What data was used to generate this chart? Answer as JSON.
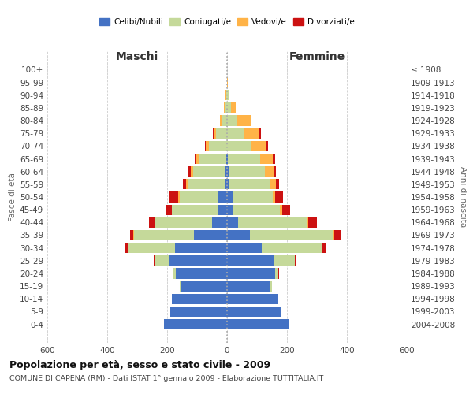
{
  "age_groups": [
    "100+",
    "95-99",
    "90-94",
    "85-89",
    "80-84",
    "75-79",
    "70-74",
    "65-69",
    "60-64",
    "55-59",
    "50-54",
    "45-49",
    "40-44",
    "35-39",
    "30-34",
    "25-29",
    "20-24",
    "15-19",
    "10-14",
    "5-9",
    "0-4"
  ],
  "birth_years": [
    "≤ 1908",
    "1909-1913",
    "1914-1918",
    "1919-1923",
    "1924-1928",
    "1929-1933",
    "1934-1938",
    "1939-1943",
    "1944-1948",
    "1949-1953",
    "1954-1958",
    "1959-1963",
    "1964-1968",
    "1969-1973",
    "1974-1978",
    "1979-1983",
    "1984-1988",
    "1989-1993",
    "1994-1998",
    "1999-2003",
    "2004-2008"
  ],
  "males": {
    "celibi": [
      0,
      0,
      0,
      0,
      0,
      0,
      0,
      2,
      4,
      6,
      28,
      28,
      50,
      110,
      175,
      195,
      170,
      155,
      185,
      190,
      210
    ],
    "coniugati": [
      0,
      1,
      3,
      8,
      18,
      38,
      60,
      90,
      110,
      125,
      130,
      155,
      190,
      200,
      155,
      45,
      8,
      3,
      0,
      0,
      0
    ],
    "vedovi": [
      0,
      0,
      1,
      2,
      6,
      8,
      10,
      10,
      8,
      6,
      4,
      2,
      2,
      2,
      2,
      1,
      0,
      0,
      0,
      0,
      0
    ],
    "divorziati": [
      0,
      0,
      0,
      0,
      0,
      2,
      4,
      6,
      8,
      10,
      30,
      18,
      18,
      12,
      8,
      4,
      1,
      0,
      0,
      0,
      0
    ]
  },
  "females": {
    "nubili": [
      0,
      0,
      0,
      0,
      0,
      0,
      0,
      2,
      4,
      5,
      18,
      22,
      38,
      75,
      115,
      155,
      160,
      145,
      170,
      180,
      205
    ],
    "coniugate": [
      0,
      1,
      4,
      12,
      35,
      58,
      82,
      108,
      122,
      140,
      135,
      155,
      230,
      280,
      200,
      70,
      12,
      4,
      0,
      0,
      0
    ],
    "vedove": [
      0,
      1,
      5,
      18,
      45,
      50,
      50,
      42,
      28,
      18,
      8,
      6,
      4,
      2,
      2,
      1,
      0,
      0,
      0,
      0,
      0
    ],
    "divorziate": [
      0,
      0,
      0,
      0,
      2,
      4,
      6,
      8,
      10,
      10,
      25,
      28,
      28,
      22,
      12,
      6,
      1,
      0,
      0,
      0,
      0
    ]
  },
  "colors": {
    "celibi_nubili": "#4472C4",
    "coniugati": "#C5D99A",
    "vedovi": "#FFB347",
    "divorziati": "#CC1111"
  },
  "xlim": 600,
  "title": "Popolazione per età, sesso e stato civile - 2009",
  "subtitle": "COMUNE DI CAPENA (RM) - Dati ISTAT 1° gennaio 2009 - Elaborazione TUTTITALIA.IT",
  "xlabel_left": "Maschi",
  "xlabel_right": "Femmine",
  "ylabel_left": "Fasce di età",
  "ylabel_right": "Anni di nascita"
}
